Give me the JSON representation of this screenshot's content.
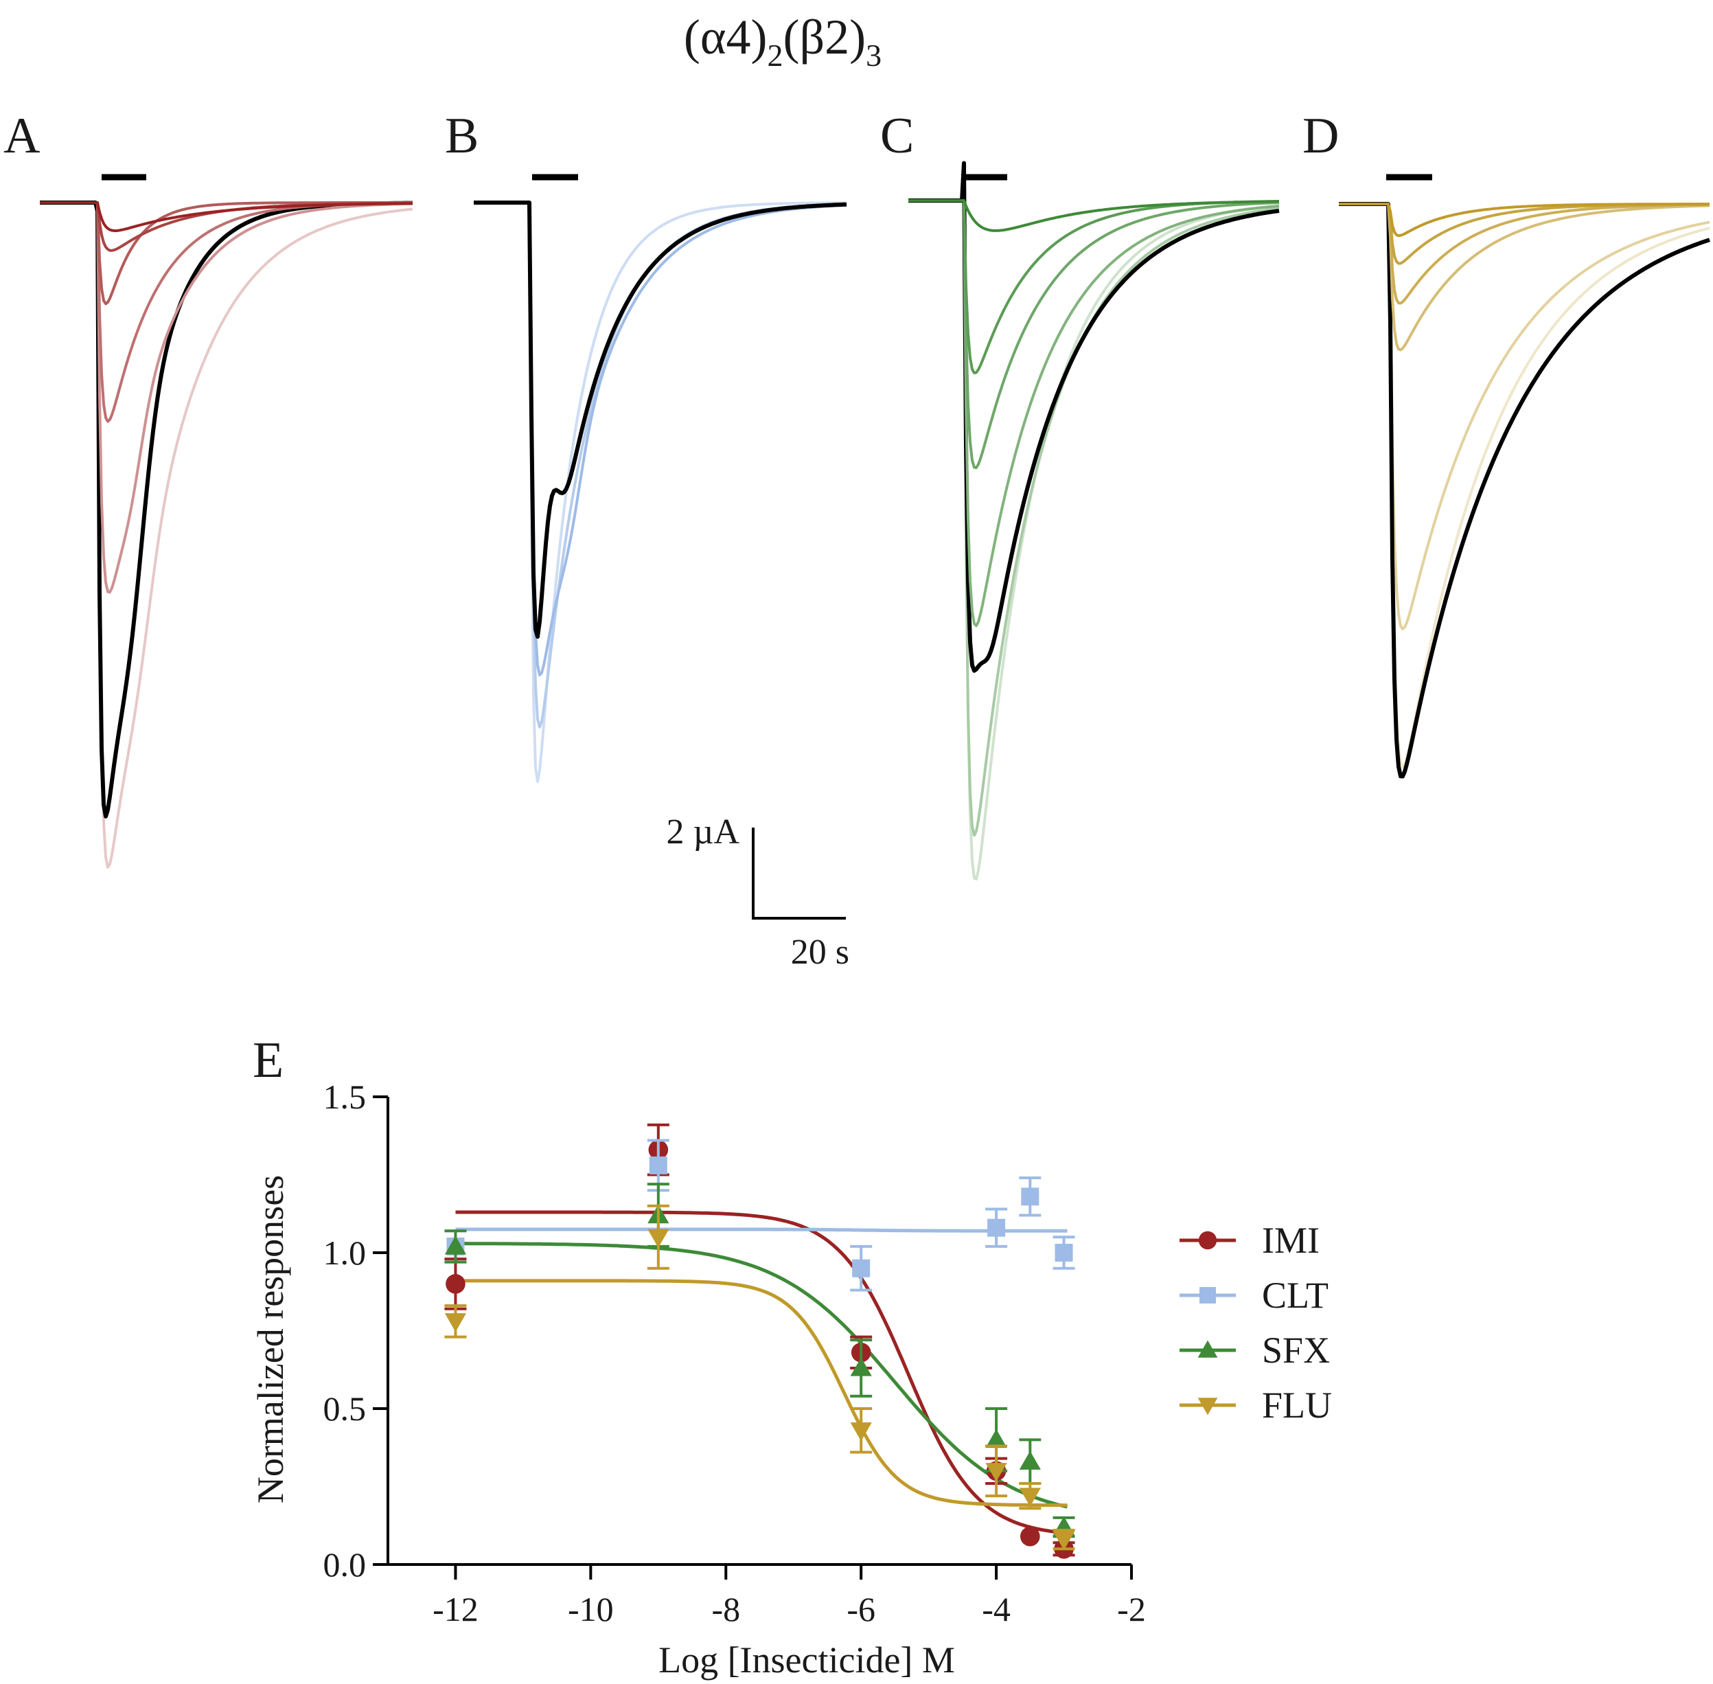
{
  "figure": {
    "title_main": "(α4)",
    "title_sub1": "2",
    "title_mid": "(β2)",
    "title_sub2": "3"
  },
  "panels": [
    {
      "label": "A",
      "insecticide": "IMI",
      "color": "#9b2323"
    },
    {
      "label": "B",
      "insecticide": "CLT",
      "color": "#9dbbe6"
    },
    {
      "label": "C",
      "insecticide": "SFX",
      "color": "#3e8a37"
    },
    {
      "label": "D",
      "insecticide": "FLU",
      "color": "#c09a2a"
    }
  ],
  "scale_bar": {
    "current_label": "2 µA",
    "time_label": "20 s"
  },
  "colors": {
    "control": "#000000"
  },
  "chart_data": {
    "type": "scatter",
    "panel_label": "E",
    "xlabel": "Log [Insecticide] M",
    "ylabel": "Normalized responses",
    "xlim": [
      -13,
      -2
    ],
    "ylim": [
      0,
      1.5
    ],
    "xticks": [
      "-12",
      "-10",
      "-8",
      "-6",
      "-4",
      "-2"
    ],
    "yticks": [
      "0.0",
      "0.5",
      "1.0",
      "1.5"
    ],
    "legend_position": "right",
    "grid": false,
    "series": [
      {
        "name": "IMI",
        "color": "#9b2323",
        "marker": "circle",
        "x": [
          -12,
          -9,
          -6,
          -4,
          -3.5,
          -3
        ],
        "y": [
          0.9,
          1.33,
          0.68,
          0.3,
          0.09,
          0.05
        ],
        "err": [
          0.08,
          0.08,
          0.05,
          0.04,
          0.0,
          0.02
        ],
        "fit": {
          "top": 1.13,
          "bottom": 0.09,
          "logIC50": -5.3,
          "hill": -0.85
        }
      },
      {
        "name": "CLT",
        "color": "#9dbbe6",
        "marker": "square",
        "x": [
          -12,
          -9,
          -6,
          -4,
          -3.5,
          -3
        ],
        "y": [
          1.02,
          1.28,
          0.95,
          1.08,
          1.18,
          1.0
        ],
        "err": [
          0.05,
          0.08,
          0.07,
          0.06,
          0.06,
          0.05
        ],
        "fit": {
          "top": 1.075,
          "bottom": 1.07,
          "logIC50": -6.0,
          "hill": -1.0
        }
      },
      {
        "name": "SFX",
        "color": "#3e8a37",
        "marker": "triangle-up",
        "x": [
          -12,
          -9,
          -6,
          -4,
          -3.5,
          -3
        ],
        "y": [
          1.02,
          1.12,
          0.63,
          0.4,
          0.33,
          0.12
        ],
        "err": [
          0.05,
          0.1,
          0.09,
          0.1,
          0.07,
          0.03
        ],
        "fit": {
          "top": 1.03,
          "bottom": 0.14,
          "logIC50": -5.5,
          "hill": -0.5
        }
      },
      {
        "name": "FLU",
        "color": "#c09a2a",
        "marker": "triangle-down",
        "x": [
          -12,
          -9,
          -6,
          -4,
          -3.5,
          -3
        ],
        "y": [
          0.78,
          1.05,
          0.43,
          0.3,
          0.22,
          0.08
        ],
        "err": [
          0.05,
          0.1,
          0.07,
          0.08,
          0.04,
          0.03
        ],
        "fit": {
          "top": 0.91,
          "bottom": 0.19,
          "logIC50": -6.25,
          "hill": -1.1
        }
      }
    ]
  }
}
